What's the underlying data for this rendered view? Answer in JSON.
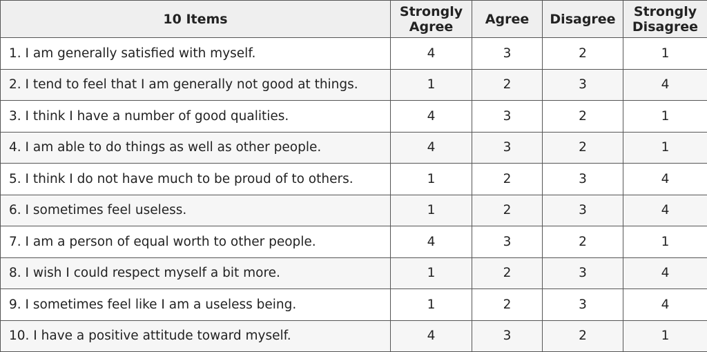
{
  "table": {
    "header": [
      "10 Items",
      "Strongly Agree",
      "Agree",
      "Disagree",
      "Strongly Disagree"
    ],
    "rows": [
      [
        "1. I am generally satisfied with myself.",
        4,
        3,
        2,
        1
      ],
      [
        "2. I tend to feel that I am generally not good at things.",
        1,
        2,
        3,
        4
      ],
      [
        "3. I think I have a number of good qualities.",
        4,
        3,
        2,
        1
      ],
      [
        "4. I am able to do things as well as other people.",
        4,
        3,
        2,
        1
      ],
      [
        "5. I think I do not have much to be proud of to others.",
        1,
        2,
        3,
        4
      ],
      [
        "6. I sometimes feel useless.",
        1,
        2,
        3,
        4
      ],
      [
        "7. I am a person of equal worth to other people.",
        4,
        3,
        2,
        1
      ],
      [
        "8. I wish I could respect myself a bit more.",
        1,
        2,
        3,
        4
      ],
      [
        "9. I sometimes feel like I am a useless being.",
        1,
        2,
        3,
        4
      ],
      [
        "10. I have a positive attitude toward myself.",
        4,
        3,
        2,
        1
      ]
    ]
  }
}
